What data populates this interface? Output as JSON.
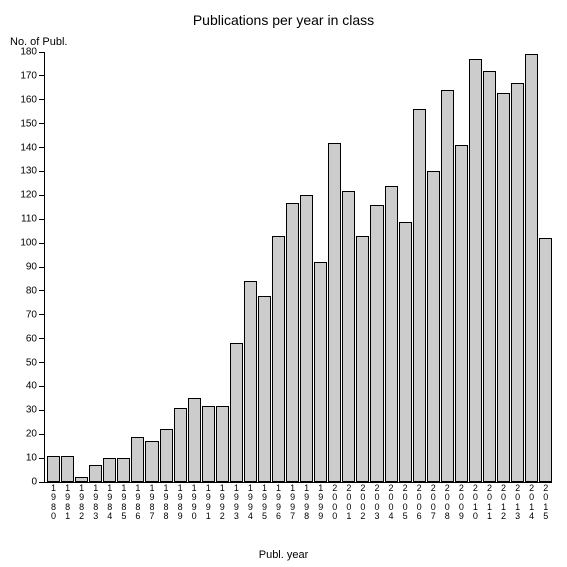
{
  "chart": {
    "type": "bar",
    "title": "Publications per year in class",
    "title_fontsize": 14,
    "y_axis_title": "No. of Publ.",
    "x_axis_title": "Publ. year",
    "label_fontsize": 11,
    "tick_fontsize": 10,
    "background_color": "#ffffff",
    "bar_fill": "#cccccc",
    "bar_border": "#000000",
    "axis_color": "#000000",
    "ylim": [
      0,
      180
    ],
    "ytick_step": 10,
    "yticks": [
      0,
      10,
      20,
      30,
      40,
      50,
      60,
      70,
      80,
      90,
      100,
      110,
      120,
      130,
      140,
      150,
      160,
      170,
      180
    ],
    "categories": [
      "1980",
      "1981",
      "1982",
      "1983",
      "1984",
      "1985",
      "1986",
      "1987",
      "1988",
      "1989",
      "1990",
      "1991",
      "1992",
      "1993",
      "1994",
      "1995",
      "1996",
      "1997",
      "1998",
      "1999",
      "2000",
      "2001",
      "2002",
      "2003",
      "2004",
      "2005",
      "2006",
      "2007",
      "2008",
      "2009",
      "2010",
      "2011",
      "2012",
      "2013",
      "2014",
      "2015"
    ],
    "values": [
      11,
      11,
      2,
      7,
      10,
      10,
      19,
      17,
      22,
      31,
      35,
      32,
      32,
      58,
      84,
      78,
      103,
      117,
      120,
      92,
      142,
      122,
      103,
      116,
      124,
      109,
      156,
      130,
      164,
      141,
      177,
      172,
      163,
      167,
      179,
      102
    ]
  }
}
